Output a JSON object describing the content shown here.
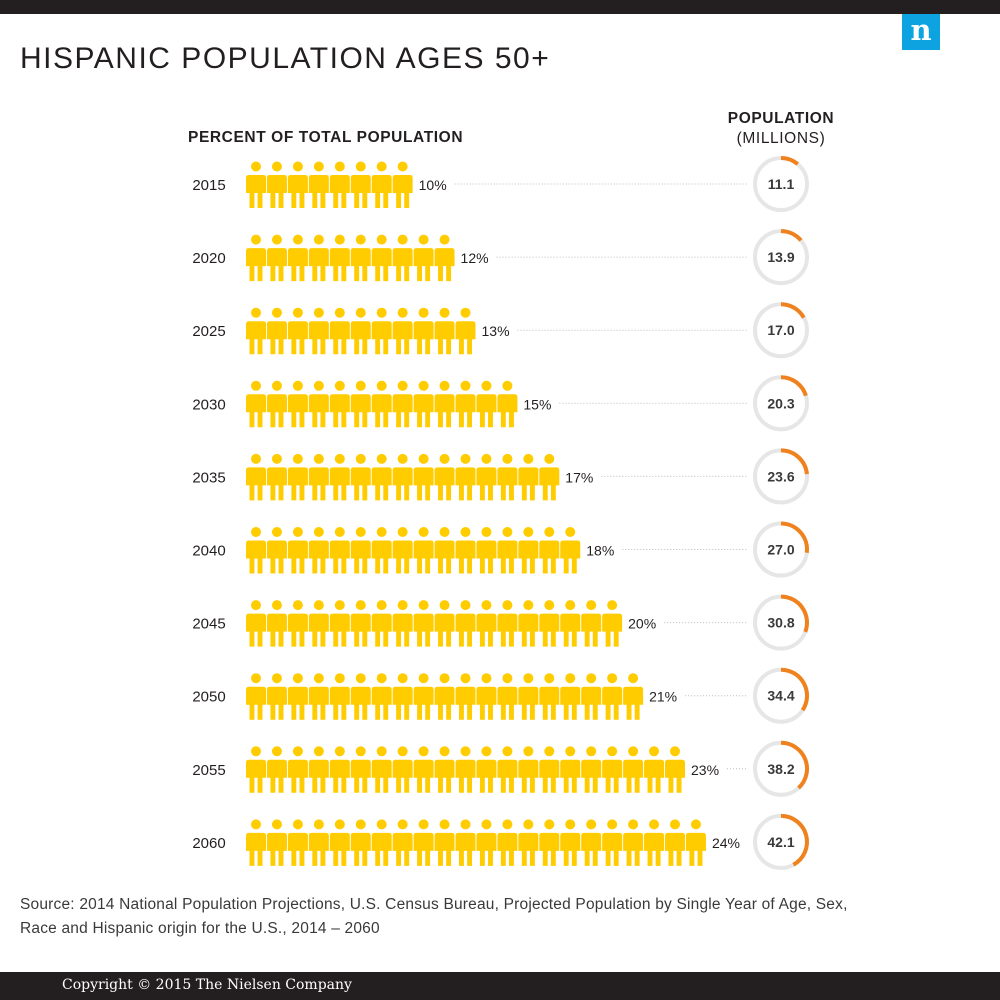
{
  "header": {
    "logo_letter": "n",
    "title": "HISPANIC POPULATION AGES 50+"
  },
  "colors": {
    "person": "#ffcc00",
    "ring_track": "#e6e6e6",
    "ring_fill": "#f0821e",
    "brand": "#0da2e0",
    "dark": "#231f20"
  },
  "chart_data": {
    "type": "pictograph",
    "left_header": "PERCENT OF TOTAL POPULATION",
    "right_header_line1": "POPULATION",
    "right_header_line2": "(MILLIONS)",
    "icon": "person-icon",
    "categories": [
      "2015",
      "2020",
      "2025",
      "2030",
      "2035",
      "2040",
      "2045",
      "2050",
      "2055",
      "2060"
    ],
    "series": [
      {
        "name": "PERCENT OF TOTAL POPULATION",
        "values": [
          10,
          12,
          13,
          15,
          17,
          18,
          20,
          21,
          23,
          24
        ],
        "labels": [
          "10%",
          "12%",
          "13%",
          "15%",
          "17%",
          "18%",
          "20%",
          "21%",
          "23%",
          "24%"
        ]
      },
      {
        "name": "POPULATION (MILLIONS)",
        "values": [
          11.1,
          13.9,
          17.0,
          20.3,
          23.6,
          27.0,
          30.8,
          34.4,
          38.2,
          42.1
        ],
        "labels": [
          "11.1",
          "13.9",
          "17.0",
          "20.3",
          "23.6",
          "27.0",
          "30.8",
          "34.4",
          "38.2",
          "42.1"
        ]
      }
    ]
  },
  "source": "Source: 2014 National Population Projections, U.S. Census Bureau, Projected Population by Single Year of Age, Sex, Race and Hispanic origin for the U.S., 2014 – 2060",
  "footer": {
    "copyright": "Copyright © 2015 The Nielsen Company"
  }
}
